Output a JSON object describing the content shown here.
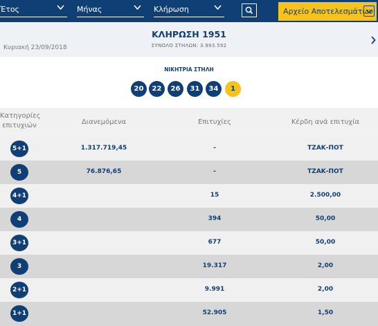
{
  "filters": {
    "year_label": "Έτος",
    "month_label": "Μήνας",
    "draw_label": "Κλήρωση"
  },
  "archive_button_label": "Αρχείο Αποτελεσμάτων",
  "draw": {
    "title": "ΚΛΗΡΩΣΗ 1951",
    "columns": "ΣΥΝΟΛΟ ΣΤΗΛΩΝ: 3.993.592",
    "date": "Κυριακή 23/09/2018"
  },
  "winning": {
    "label": "ΝΙΚΗΤΡΙΑ ΣΤΗΛΗ",
    "numbers": [
      "20",
      "22",
      "26",
      "31",
      "34"
    ],
    "joker": "1"
  },
  "table": {
    "headers": {
      "category_line1": "Κατηγορίες",
      "category_line2": "επιτυχιών",
      "distributed": "Διανεμόμενα",
      "wins": "Επιτυχίες",
      "prize": "Κέρδη ανά επιτυχία"
    },
    "rows": [
      {
        "category": "5+1",
        "distributed": "1.317.719,45",
        "wins": "-",
        "prize": "ΤΖΑΚ-ΠΟΤ"
      },
      {
        "category": "5",
        "distributed": "76.876,65",
        "wins": "-",
        "prize": "ΤΖΑΚ-ΠΟΤ"
      },
      {
        "category": "4+1",
        "distributed": "",
        "wins": "15",
        "prize": "2.500,00"
      },
      {
        "category": "4",
        "distributed": "",
        "wins": "394",
        "prize": "50,00"
      },
      {
        "category": "3+1",
        "distributed": "",
        "wins": "677",
        "prize": "50,00"
      },
      {
        "category": "3",
        "distributed": "",
        "wins": "19.317",
        "prize": "2,00"
      },
      {
        "category": "2+1",
        "distributed": "",
        "wins": "9.991",
        "prize": "2,00"
      },
      {
        "category": "1+1",
        "distributed": "",
        "wins": "52.905",
        "prize": "1,50"
      }
    ]
  },
  "colors": {
    "primary": "#0f3f74",
    "accent": "#f7c31a"
  },
  "icons": [
    "chevron-down-icon",
    "search-icon",
    "chevron-right-icon"
  ]
}
